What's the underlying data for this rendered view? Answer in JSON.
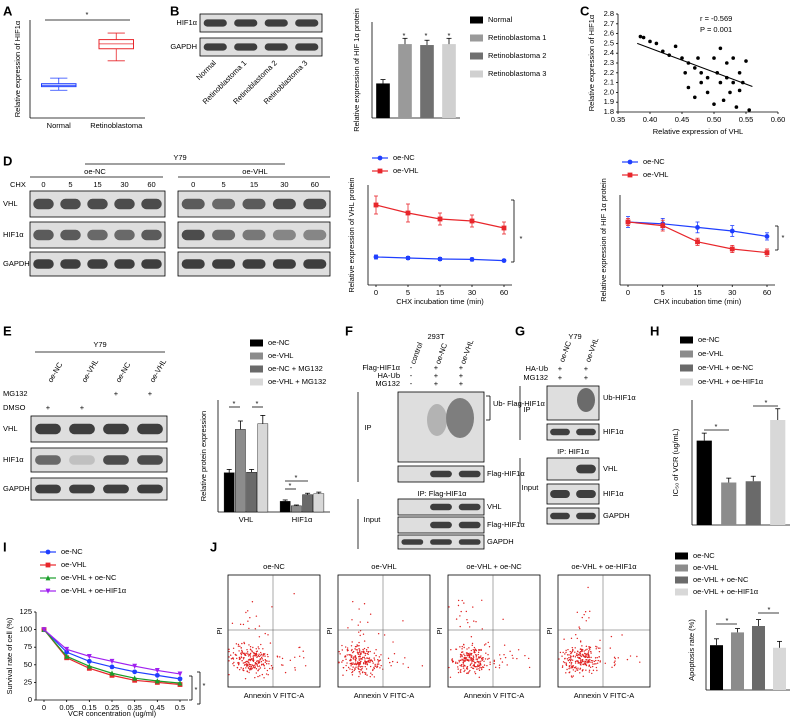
{
  "panel_letters": [
    "A",
    "B",
    "C",
    "D",
    "E",
    "F",
    "G",
    "H",
    "I",
    "J"
  ],
  "chart_data": [
    {
      "type": "box",
      "y_label": "Relative expression of HIF1α",
      "categories": [
        "Normal",
        "Retinoblastoma"
      ],
      "colors": [
        "#1f3fff",
        "#e8262b"
      ],
      "boxes": [
        {
          "min": 0.85,
          "q1": 0.96,
          "median": 1.0,
          "q3": 1.05,
          "max": 1.22
        },
        {
          "min": 1.75,
          "q1": 2.12,
          "median": 2.27,
          "q3": 2.4,
          "max": 2.6
        }
      ],
      "ylim": [
        0,
        3
      ],
      "annotations": [
        "*"
      ]
    },
    {
      "type": "bar",
      "y_label": "Relative expression of HIF 1α protein",
      "categories": [
        "Normal",
        "Retinoblastoma 1",
        "Retinoblastoma 2",
        "Retinoblastoma 3"
      ],
      "values": [
        0.36,
        0.77,
        0.76,
        0.77
      ],
      "errors": [
        0.04,
        0.06,
        0.05,
        0.06
      ],
      "colors": [
        "#000000",
        "#9a9a9a",
        "#707070",
        "#d0d0d0"
      ],
      "ylim": [
        0,
        1
      ],
      "annotations": [
        "*",
        "*",
        "*"
      ]
    },
    {
      "type": "scatter",
      "x_label": "Relative expression of VHL",
      "y_label": "Relative expression of HIF1α",
      "color": "#000000",
      "x": [
        0.385,
        0.39,
        0.4,
        0.41,
        0.42,
        0.43,
        0.44,
        0.45,
        0.455,
        0.46,
        0.46,
        0.47,
        0.47,
        0.475,
        0.48,
        0.48,
        0.49,
        0.49,
        0.5,
        0.5,
        0.505,
        0.51,
        0.51,
        0.515,
        0.52,
        0.52,
        0.525,
        0.53,
        0.53,
        0.535,
        0.54,
        0.54,
        0.545,
        0.55,
        0.555
      ],
      "y": [
        2.57,
        2.56,
        2.52,
        2.5,
        2.42,
        2.38,
        2.47,
        2.35,
        2.2,
        2.3,
        2.05,
        2.25,
        1.95,
        2.35,
        2.2,
        2.1,
        2.0,
        2.15,
        2.35,
        1.88,
        2.2,
        2.1,
        2.45,
        1.92,
        2.15,
        2.3,
        2.0,
        2.1,
        2.35,
        1.85,
        2.2,
        2.02,
        2.1,
        2.32,
        1.82
      ],
      "fit": {
        "x": [
          0.38,
          0.56
        ],
        "y": [
          2.5,
          2.06
        ]
      },
      "xlim": [
        0.35,
        0.6
      ],
      "xticks": [
        0.35,
        {
          "value": 0.4,
          "label": "0.40"
        },
        0.45,
        {
          "value": 0.5,
          "label": "0.50"
        },
        0.55,
        {
          "value": 0.6,
          "label": "0.60"
        }
      ],
      "ylim": [
        1.8,
        2.8
      ],
      "yticks": [
        1.8,
        1.9,
        {
          "value": 2,
          "label": "2.0"
        },
        2.1,
        2.2,
        2.3,
        2.4,
        2.5,
        2.6,
        2.7,
        2.8
      ],
      "annotations": [
        "r = -0.569",
        "P = 0.001"
      ]
    },
    {
      "type": "line",
      "x_label": "CHX incubation time (min)",
      "y_label": "Relative expression of VHL protein",
      "categories": [
        "0",
        "5",
        "15",
        "30",
        "60"
      ],
      "series": [
        {
          "name": "oe-NC",
          "color": "#1f3fff",
          "marker": "circle",
          "values": [
            1.4,
            1.35,
            1.3,
            1.28,
            1.22
          ],
          "errors": [
            0.1,
            0.08,
            0.08,
            0.08,
            0.06
          ]
        },
        {
          "name": "oe-VHL",
          "color": "#e8262b",
          "marker": "square",
          "values": [
            4.0,
            3.6,
            3.3,
            3.2,
            2.85
          ],
          "errors": [
            0.45,
            0.45,
            0.3,
            0.3,
            0.3
          ]
        }
      ],
      "ylim": [
        0,
        5
      ],
      "annotations": [
        "*"
      ]
    },
    {
      "type": "line",
      "x_label": "CHX incubation time (min)",
      "y_label": "Relative expression of HIF 1α protein",
      "categories": [
        "0",
        "5",
        "15",
        "30",
        "60"
      ],
      "series": [
        {
          "name": "oe-NC",
          "color": "#1f3fff",
          "marker": "circle",
          "values": [
            0.35,
            0.34,
            0.32,
            0.3,
            0.27
          ],
          "errors": [
            0.03,
            0.03,
            0.03,
            0.03,
            0.02
          ]
        },
        {
          "name": "oe-VHL",
          "color": "#e8262b",
          "marker": "square",
          "values": [
            0.35,
            0.33,
            0.24,
            0.2,
            0.18
          ],
          "errors": [
            0.02,
            0.03,
            0.02,
            0.02,
            0.02
          ]
        }
      ],
      "ylim": [
        0,
        0.5
      ],
      "annotations": [
        "*"
      ]
    },
    {
      "type": "bar",
      "y_label": "Relative protein expression",
      "categories": [
        "VHL",
        "HIF1α"
      ],
      "series": [
        {
          "name": "oe-NC",
          "color": "#000000",
          "values": [
            1.4,
            0.38
          ],
          "errors": [
            0.12,
            0.05
          ]
        },
        {
          "name": "oe-VHL",
          "color": "#8c8c8c",
          "values": [
            2.95,
            0.22
          ],
          "errors": [
            0.3,
            0.03
          ]
        },
        {
          "name": "oe-NC + MG132",
          "color": "#6a6a6a",
          "values": [
            1.42,
            0.62
          ],
          "errors": [
            0.1,
            0.05
          ]
        },
        {
          "name": "oe-VHL + MG132",
          "color": "#d8d8d8",
          "values": [
            3.15,
            0.65
          ],
          "errors": [
            0.3,
            0.06
          ]
        }
      ],
      "ylim": [
        0,
        4
      ],
      "annotations": [
        "*",
        "*",
        "*",
        "*"
      ]
    },
    {
      "type": "bar",
      "y_label": "IC₅₀ of VCR (ug/mL)",
      "categories": [
        "oe-NC",
        "oe-VHL",
        "oe-VHL + oe-NC",
        "oe-VHL + oe-HIF1α"
      ],
      "values": [
        1.35,
        0.68,
        0.7,
        1.68
      ],
      "errors": [
        0.12,
        0.07,
        0.08,
        0.18
      ],
      "colors": [
        "#000000",
        "#8c8c8c",
        "#6a6a6a",
        "#d8d8d8"
      ],
      "ylim": [
        0,
        2
      ],
      "annotations": [
        "*",
        "*"
      ]
    },
    {
      "type": "line",
      "x_label": "VCR concentration (ug/ml)",
      "y_label": "Survival rate of cell (%)",
      "categories": [
        "0",
        "0.05",
        "0.15",
        "0.25",
        "0.35",
        "0.45",
        "0.5"
      ],
      "series": [
        {
          "name": "oe-NC",
          "color": "#1f3fff",
          "marker": "circle",
          "values": [
            100,
            68,
            55,
            47,
            40,
            35,
            30
          ]
        },
        {
          "name": "oe-VHL",
          "color": "#e8262b",
          "marker": "square",
          "values": [
            100,
            60,
            45,
            35,
            28,
            25,
            22
          ]
        },
        {
          "name": "oe-VHL + oe-NC",
          "color": "#1a9e2a",
          "marker": "triangle",
          "values": [
            100,
            62,
            48,
            38,
            31,
            27,
            24
          ]
        },
        {
          "name": "oe-VHL + oe-HIF1α",
          "color": "#a020f0",
          "marker": "triangle-down",
          "values": [
            100,
            72,
            62,
            55,
            48,
            42,
            37
          ]
        }
      ],
      "ylim": [
        0,
        125
      ],
      "yticks": [
        0,
        25,
        50,
        75,
        100,
        125
      ],
      "annotations": [
        "*",
        "*"
      ]
    },
    {
      "type": "bar",
      "y_label": "Apoptosis rate (%)",
      "categories": [
        "oe-NC",
        "oe-VHL",
        "oe-VHL + oe-NC",
        "oe-VHL + oe-HIF1α"
      ],
      "values": [
        14,
        18,
        20,
        13.2
      ],
      "errors": [
        2,
        1.2,
        2,
        2
      ],
      "colors": [
        "#000000",
        "#8c8c8c",
        "#6a6a6a",
        "#d8d8d8"
      ],
      "ylim": [
        0,
        25
      ],
      "annotations": [
        "*",
        "*"
      ]
    }
  ],
  "blots": {
    "B": {
      "rows": [
        "HIF1α",
        "GAPDH"
      ]
    },
    "D": {
      "cell": "Y79",
      "groups": [
        "oe-NC",
        "oe-VHL"
      ],
      "cond_label": "CHX",
      "times": [
        "0",
        "5",
        "15",
        "30",
        "60"
      ],
      "rows": [
        "VHL",
        "HIF1α",
        "GAPDH"
      ]
    },
    "E": {
      "cell": "Y79",
      "lanes": [
        "oe-NC",
        "oe-VHL",
        "oe-NC",
        "oe-VHL"
      ],
      "conditions": [
        {
          "label": "MG132",
          "marks": [
            null,
            null,
            "+",
            "+"
          ]
        },
        {
          "label": "DMSO",
          "marks": [
            "+",
            "+",
            null,
            null
          ]
        }
      ],
      "rows": [
        "VHL",
        "HIF1α",
        "GAPDH"
      ]
    },
    "F": {
      "cell": "293T",
      "lanes": [
        "control",
        "oe-NC",
        "oe-VHL"
      ],
      "conditions": [
        {
          "label": "Flag-HIF1α",
          "marks": [
            "-",
            "+",
            "+"
          ]
        },
        {
          "label": "HA-Ub",
          "marks": [
            "-",
            "+",
            "+"
          ]
        },
        {
          "label": "MG132",
          "marks": [
            "-",
            "+",
            "+"
          ]
        }
      ],
      "ip_label": "IP",
      "input_label": "Input",
      "ip_rows": [
        "Ub- Flag-HIF1α",
        "Flag-HIF1α"
      ],
      "ip_antibody": "IP: Flag-HIF1α",
      "input_rows": [
        "VHL",
        "Flag-HIF1α",
        "GAPDH"
      ]
    },
    "G": {
      "cell": "Y79",
      "lanes": [
        "oe-NC",
        "oe-VHL"
      ],
      "conditions": [
        {
          "label": "HA-Ub",
          "marks": [
            "+",
            "+"
          ]
        },
        {
          "label": "MG132",
          "marks": [
            "+",
            "+"
          ]
        }
      ],
      "ip_label": "IP",
      "input_label": "Input",
      "ip_rows": [
        "Ub-HIF1α",
        "HIF1α"
      ],
      "ip_antibody": "IP: HIF1α",
      "input_rows": [
        "VHL",
        "HIF1α",
        "GAPDH"
      ]
    }
  },
  "flow": {
    "titles": [
      "oe-NC",
      "oe-VHL",
      "oe-VHL + oe-NC",
      "oe-VHL + oe-HIF1α"
    ],
    "x_label": "Annexin V FITC-A",
    "y_label": "PI"
  }
}
